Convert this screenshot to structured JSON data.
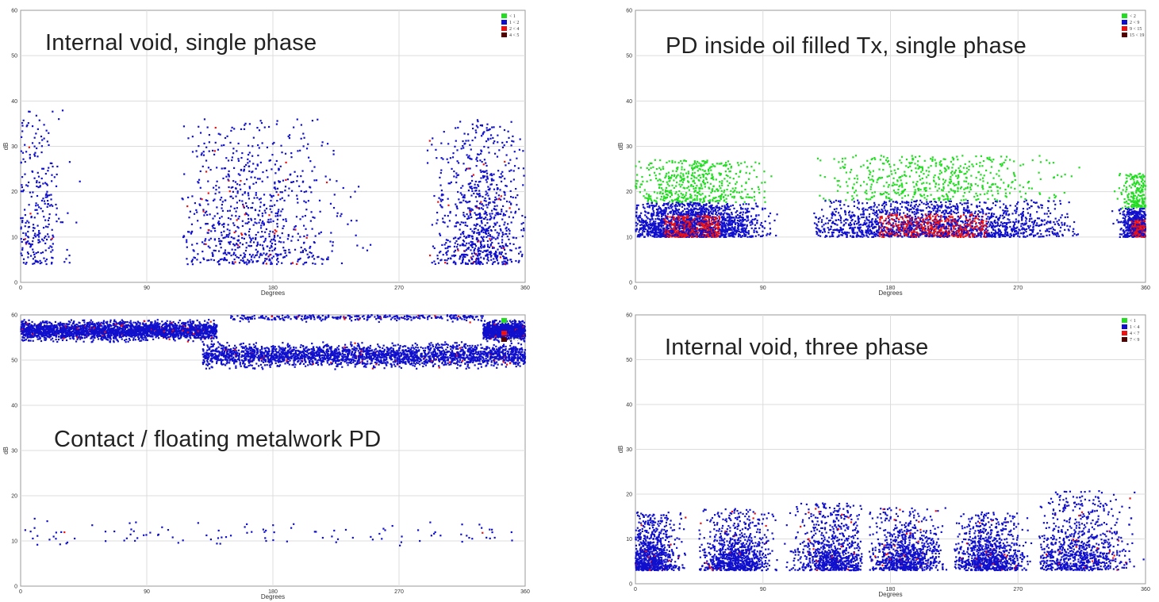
{
  "chart_data": [
    {
      "type": "scatter",
      "title": "Internal void, single phase",
      "xlabel": "Degrees",
      "ylabel": "dB",
      "xlim": [
        0,
        360
      ],
      "ylim": [
        0,
        60
      ],
      "xticks": [
        0,
        90,
        180,
        270,
        360
      ],
      "yticks": [
        0,
        10,
        20,
        30,
        40,
        50,
        60
      ],
      "grid": true,
      "legend_position": "top-right",
      "legend": [
        {
          "label": "< 1",
          "color": "#22dd22"
        },
        {
          "label": "1 < 2",
          "color": "#1010cc"
        },
        {
          "label": "2 < 4",
          "color": "#ee1111"
        },
        {
          "label": "4 < 5",
          "color": "#550000"
        }
      ],
      "clusters": [
        {
          "x_range": [
            0,
            45
          ],
          "y_range": [
            4,
            38
          ],
          "peak_x": 10,
          "peak_y": 18,
          "density": "medium",
          "color": "#1a1ad0"
        },
        {
          "x_range": [
            115,
            250
          ],
          "y_range": [
            4,
            36
          ],
          "peak_x": 165,
          "peak_y": 18,
          "density": "high",
          "color": "#1a1ad0"
        },
        {
          "x_range": [
            290,
            360
          ],
          "y_range": [
            4,
            36
          ],
          "peak_x": 330,
          "peak_y": 18,
          "density": "high",
          "color": "#1a1ad0"
        }
      ]
    },
    {
      "type": "scatter",
      "title": "PD inside oil filled Tx, single phase",
      "xlabel": "Degrees",
      "ylabel": "dB",
      "xlim": [
        0,
        360
      ],
      "ylim": [
        0,
        60
      ],
      "xticks": [
        0,
        90,
        180,
        270,
        360
      ],
      "yticks": [
        0,
        10,
        20,
        30,
        40,
        50,
        60
      ],
      "grid": true,
      "legend_position": "top-right",
      "legend": [
        {
          "label": "< 2",
          "color": "#22dd22"
        },
        {
          "label": "2 < 9",
          "color": "#1010cc"
        },
        {
          "label": "9 < 15",
          "color": "#ee1111"
        },
        {
          "label": "15 < 19",
          "color": "#550000"
        }
      ],
      "clusters": [
        {
          "x_range": [
            0,
            100
          ],
          "y_range": [
            10,
            27
          ],
          "peak_x": 40,
          "peak_y": 14,
          "density": "very high"
        },
        {
          "x_range": [
            125,
            315
          ],
          "y_range": [
            10,
            28
          ],
          "peak_x": 210,
          "peak_y": 14,
          "density": "very high"
        },
        {
          "x_range": [
            335,
            360
          ],
          "y_range": [
            10,
            24
          ],
          "peak_x": 355,
          "peak_y": 14,
          "density": "high"
        }
      ]
    },
    {
      "type": "scatter",
      "title": "Contact / floating metalwork PD",
      "xlabel": "Degrees",
      "ylabel": "dB",
      "xlim": [
        0,
        360
      ],
      "ylim": [
        0,
        60
      ],
      "xticks": [
        0,
        90,
        180,
        270,
        360
      ],
      "yticks": [
        0,
        10,
        20,
        30,
        40,
        50,
        60
      ],
      "grid": true,
      "legend_position": "top-right",
      "legend": [
        {
          "label": "< 1",
          "color": "#22dd22"
        },
        {
          "label": "",
          "color": "#1010cc"
        },
        {
          "label": "",
          "color": "#ee1111"
        },
        {
          "label": "6 < 7",
          "color": "#550000"
        }
      ],
      "clusters": [
        {
          "x_range": [
            0,
            140
          ],
          "y_range": [
            54,
            59
          ],
          "peak_y": 56.5,
          "density": "very high",
          "shape": "band"
        },
        {
          "x_range": [
            330,
            360
          ],
          "y_range": [
            54,
            59
          ],
          "peak_y": 56.5,
          "density": "high",
          "shape": "band"
        },
        {
          "x_range": [
            130,
            360
          ],
          "y_range": [
            48,
            54
          ],
          "peak_y": 51,
          "density": "very high",
          "shape": "band"
        },
        {
          "x_range": [
            150,
            330
          ],
          "y_range": [
            58,
            60
          ],
          "peak_y": 59.5,
          "density": "medium",
          "shape": "band"
        },
        {
          "x_range": [
            0,
            360
          ],
          "y_range": [
            9,
            17
          ],
          "peak_y": 11,
          "density": "low",
          "shape": "band"
        }
      ]
    },
    {
      "type": "scatter",
      "title": "Internal void, three phase",
      "xlabel": "Degrees",
      "ylabel": "dB",
      "xlim": [
        0,
        360
      ],
      "ylim": [
        0,
        60
      ],
      "xticks": [
        0,
        90,
        180,
        270,
        360
      ],
      "yticks": [
        0,
        10,
        20,
        30,
        40,
        50,
        60
      ],
      "grid": true,
      "legend_position": "top-right",
      "legend": [
        {
          "label": "< 1",
          "color": "#22dd22"
        },
        {
          "label": "1 < 4",
          "color": "#1010cc"
        },
        {
          "label": "4 < 7",
          "color": "#ee1111"
        },
        {
          "label": "7 < 9",
          "color": "#550000"
        }
      ],
      "clusters": [
        {
          "x_range": [
            0,
            40
          ],
          "y_range": [
            3,
            16
          ],
          "peak_x": 10,
          "peak_y": 7,
          "density": "high"
        },
        {
          "x_range": [
            45,
            100
          ],
          "y_range": [
            3,
            17
          ],
          "peak_x": 70,
          "peak_y": 7,
          "density": "high"
        },
        {
          "x_range": [
            105,
            160
          ],
          "y_range": [
            3,
            18
          ],
          "peak_x": 140,
          "peak_y": 7,
          "density": "high"
        },
        {
          "x_range": [
            165,
            220
          ],
          "y_range": [
            3,
            17
          ],
          "peak_x": 190,
          "peak_y": 7,
          "density": "high"
        },
        {
          "x_range": [
            225,
            280
          ],
          "y_range": [
            3,
            16
          ],
          "peak_x": 250,
          "peak_y": 7,
          "density": "high"
        },
        {
          "x_range": [
            285,
            360
          ],
          "y_range": [
            3,
            21
          ],
          "peak_x": 310,
          "peak_y": 8,
          "density": "high"
        }
      ]
    }
  ]
}
